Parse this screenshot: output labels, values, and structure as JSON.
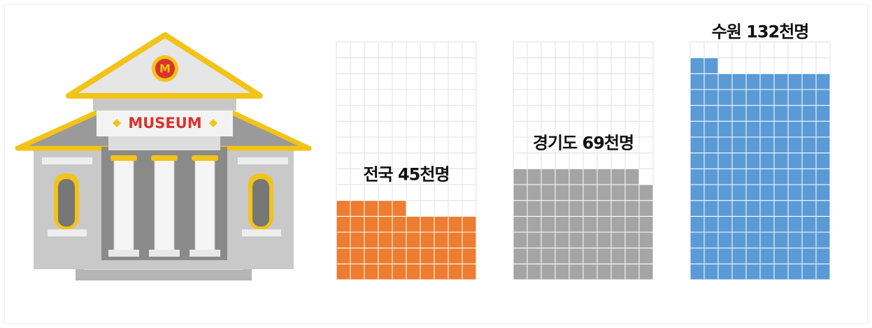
{
  "chart_data": {
    "type": "waffle",
    "categories": [
      "전국",
      "경기도",
      "수원"
    ],
    "values": [
      45,
      69,
      132
    ],
    "value_labels": [
      "전국 45천명",
      "경기도 69천명",
      "수원 132천명"
    ],
    "colors": [
      "#ed7d31",
      "#a5a5a5",
      "#5b9bd5"
    ]
  },
  "illustration": {
    "sign": "MUSEUM",
    "emblem": "M"
  }
}
